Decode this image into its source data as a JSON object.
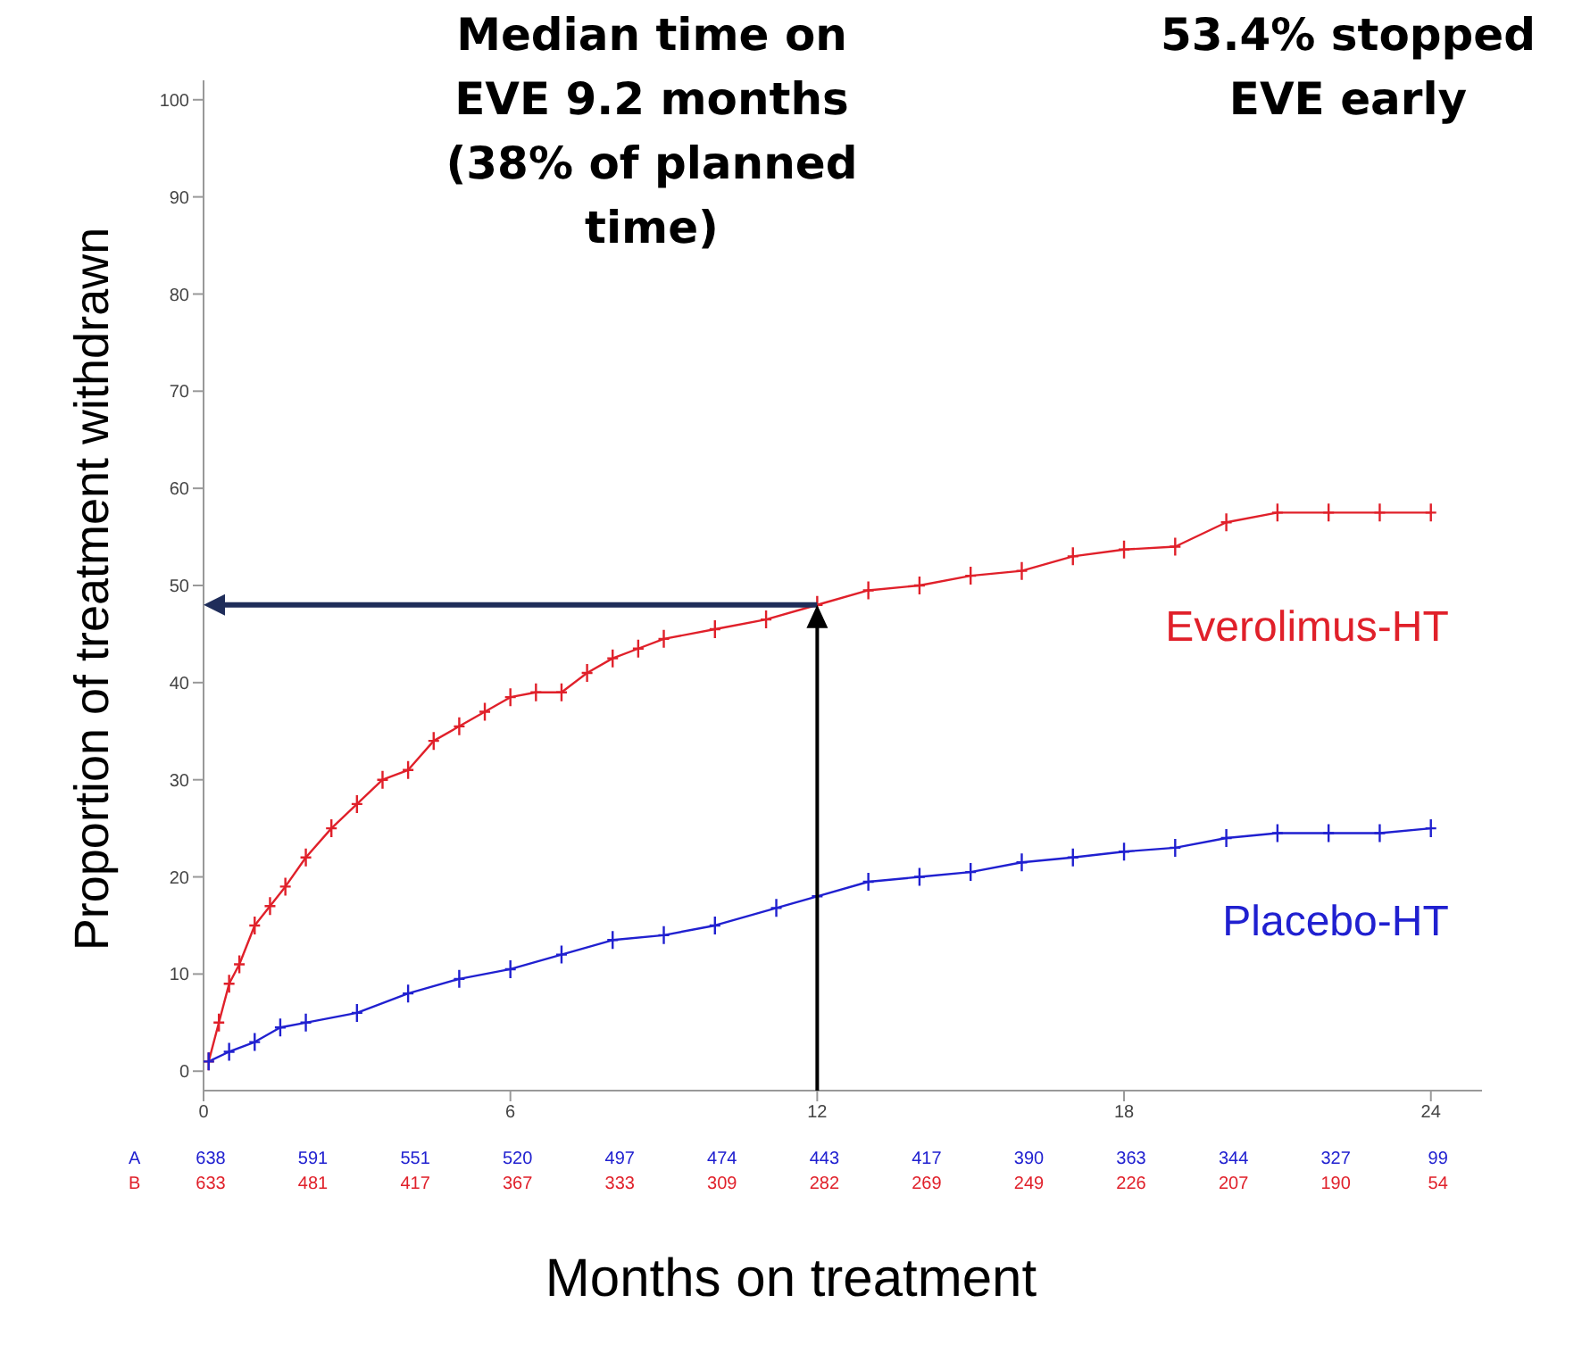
{
  "chart_data": {
    "type": "line",
    "xlabel": "Months on treatment",
    "ylabel": "Proportion of treatment withdrawn",
    "xlim": [
      0,
      25
    ],
    "xticks": [
      0,
      6,
      12,
      18,
      24
    ],
    "ylim": [
      -2,
      102
    ],
    "yticks": [
      0,
      10,
      20,
      30,
      40,
      50,
      60,
      70,
      80,
      90,
      100
    ],
    "grid": false,
    "legend": false,
    "marker": "cross",
    "line_style": "solid",
    "series": [
      {
        "name": "Everolimus-HT",
        "color": "#e0202a",
        "x": [
          0.1,
          0.3,
          0.5,
          0.7,
          1,
          1.3,
          1.6,
          2,
          2.5,
          3,
          3.5,
          4,
          4.5,
          5,
          5.5,
          6,
          6.5,
          7,
          7.5,
          8,
          8.5,
          9,
          10,
          11,
          12,
          13,
          14,
          15,
          16,
          17,
          18,
          19,
          20,
          21,
          22,
          23,
          24
        ],
        "values": [
          1,
          5,
          9,
          11,
          15,
          17,
          19,
          22,
          25,
          27.5,
          30,
          31,
          34,
          35.5,
          37,
          38.5,
          39,
          39,
          41,
          42.5,
          43.5,
          44.5,
          45.5,
          46.5,
          48,
          49.5,
          50,
          51,
          51.5,
          53,
          53.7,
          54,
          56.5,
          57.5,
          57.5,
          57.5,
          57.5
        ]
      },
      {
        "name": "Placebo-HT",
        "color": "#2020d0",
        "x": [
          0.1,
          0.5,
          1,
          1.5,
          2,
          3,
          4,
          5,
          6,
          7,
          8,
          9,
          10,
          11.2,
          12,
          13,
          14,
          15,
          16,
          17,
          18,
          19,
          20,
          21,
          22,
          23,
          24
        ],
        "values": [
          1,
          2,
          3,
          4.5,
          5,
          6,
          8,
          9.5,
          10.5,
          12,
          13.5,
          14,
          15,
          16.8,
          18,
          19.5,
          20,
          20.5,
          21.5,
          22,
          22.6,
          23,
          24,
          24.5,
          24.5,
          24.5,
          25
        ]
      }
    ],
    "ref_lines": [
      {
        "axis": "y",
        "value": 48,
        "color": "#1f2d5a"
      },
      {
        "axis": "x",
        "value": 12,
        "color": "#000000"
      }
    ],
    "annotations": [
      "Median time on\nEVE 9.2 months\n(38% of planned\ntime)",
      "53.4% stopped\nEVE early",
      "A",
      "638",
      "591",
      "551",
      "520",
      "497",
      "474",
      "443",
      "417",
      "390",
      "363",
      "344",
      "327",
      "99",
      "B",
      "633",
      "481",
      "417",
      "367",
      "333",
      "309",
      "282",
      "269",
      "249",
      "226",
      "207",
      "190",
      "54"
    ]
  }
}
